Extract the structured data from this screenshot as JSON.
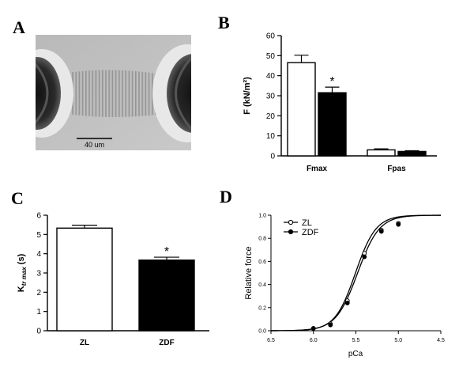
{
  "panels": {
    "a": {
      "letter": "A"
    },
    "b": {
      "letter": "B"
    },
    "c": {
      "letter": "C"
    },
    "d": {
      "letter": "D"
    }
  },
  "micrograph": {
    "scale_bar_label": "40 um"
  },
  "chart_data": [
    {
      "id": "B",
      "type": "bar",
      "title": "",
      "xlabel": "",
      "ylabel": "F (kN/m²)",
      "categories": [
        "Fmax",
        "Fpas"
      ],
      "series": [
        {
          "fill": "open",
          "values": [
            46.5,
            3.0
          ],
          "errors": [
            3.7,
            0.5
          ],
          "colors": "#ffffff"
        },
        {
          "fill": "filled",
          "values": [
            31.5,
            2.2
          ],
          "errors": [
            2.8,
            0.4
          ],
          "colors": "#000000"
        }
      ],
      "significance": [
        {
          "category": "Fmax",
          "series": 1,
          "marker": "*"
        }
      ],
      "ylim": [
        0,
        60
      ],
      "yticks": [
        "0",
        "10",
        "20",
        "30",
        "40",
        "50",
        "60"
      ]
    },
    {
      "id": "C",
      "type": "bar",
      "title": "",
      "xlabel": "",
      "ylabel_main": "K",
      "ylabel_sub": "tr max",
      "ylabel_unit": " (s)",
      "categories": [
        "ZL",
        "ZDF"
      ],
      "values": [
        5.33,
        3.67
      ],
      "errors": [
        0.15,
        0.15
      ],
      "colors": [
        "#ffffff",
        "#000000"
      ],
      "significance": [
        {
          "category": "ZDF",
          "marker": "*"
        }
      ],
      "ylim": [
        0,
        6
      ],
      "yticks": [
        "0",
        "1",
        "2",
        "3",
        "4",
        "5",
        "6"
      ]
    },
    {
      "id": "D",
      "type": "scatter",
      "title": "",
      "xlabel": "pCa",
      "ylabel": "Relative force",
      "x_reversed": true,
      "xlim": [
        6.5,
        4.5
      ],
      "ylim": [
        0,
        1.0
      ],
      "xticks": [
        "6.5",
        "6.0",
        "5.5",
        "5.0",
        "4.5"
      ],
      "yticks": [
        "0.0",
        "0.2",
        "0.4",
        "0.6",
        "0.8",
        "1.0"
      ],
      "legend": "top-left",
      "series": [
        {
          "name": "ZL",
          "marker": "open-circle",
          "x": [
            6.0,
            5.8,
            5.6,
            5.4,
            5.2,
            5.0
          ],
          "y": [
            0.02,
            0.06,
            0.26,
            0.67,
            0.87,
            0.93
          ],
          "fit": {
            "pca50": 5.505,
            "hill": 3.6
          }
        },
        {
          "name": "ZDF",
          "marker": "filled-circle",
          "x": [
            6.0,
            5.8,
            5.6,
            5.4,
            5.2,
            5.0
          ],
          "y": [
            0.02,
            0.05,
            0.24,
            0.64,
            0.86,
            0.92
          ],
          "fit": {
            "pca50": 5.48,
            "hill": 3.4
          }
        }
      ]
    }
  ]
}
